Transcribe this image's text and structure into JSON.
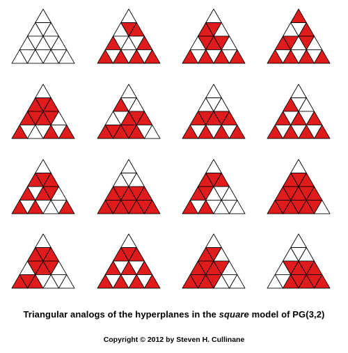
{
  "colors": {
    "fill": "#e01b1b",
    "edge": "#000000",
    "background": "#ffffff"
  },
  "diagram": {
    "rows": 4,
    "cols": 4,
    "triangle_levels": 4,
    "note": "each figure: 16 small triangles; levels 0-3 from apex; per level list of filled triangle indices (left to right, 0..2k)",
    "figures": [
      {
        "filled": [
          [],
          [],
          [],
          []
        ]
      },
      {
        "filled": [
          [],
          [
            1,
            2
          ],
          [
            0,
            4
          ],
          [
            0,
            2,
            4,
            6
          ]
        ]
      },
      {
        "filled": [
          [],
          [
            0,
            1
          ],
          [
            1,
            2,
            3
          ],
          [
            0,
            2,
            4,
            6
          ]
        ]
      },
      {
        "filled": [
          [
            0
          ],
          [
            2
          ],
          [
            0,
            1,
            3
          ],
          [
            0,
            2,
            4,
            6
          ]
        ]
      },
      {
        "filled": [
          [],
          [
            0,
            1,
            2
          ],
          [
            0,
            1,
            2,
            3
          ],
          [
            0,
            4,
            6
          ]
        ]
      },
      {
        "filled": [
          [],
          [
            0
          ],
          [
            2,
            3,
            4
          ],
          [
            0,
            1,
            2,
            3,
            4
          ]
        ]
      },
      {
        "filled": [
          [],
          [],
          [
            0,
            1,
            2,
            3,
            4
          ],
          [
            0,
            2,
            4,
            6
          ]
        ]
      },
      {
        "filled": [
          [],
          [
            0
          ],
          [
            0,
            2,
            4
          ],
          [
            0,
            2,
            4,
            6
          ]
        ]
      },
      {
        "filled": [
          [],
          [
            0,
            1,
            2
          ],
          [
            0,
            2,
            3
          ],
          [
            0,
            2,
            6
          ]
        ]
      },
      {
        "filled": [
          [],
          [],
          [
            0,
            1,
            2,
            3,
            4
          ],
          [
            0,
            1,
            2,
            3,
            4,
            5,
            6
          ]
        ]
      },
      {
        "filled": [
          [],
          [
            0,
            1,
            2
          ],
          [
            0,
            1
          ],
          [
            0,
            2
          ]
        ]
      },
      {
        "filled": [
          [],
          [
            0,
            1,
            2
          ],
          [
            0,
            1,
            2,
            3,
            4
          ],
          [
            0,
            1,
            2,
            3,
            4,
            5
          ]
        ]
      },
      {
        "filled": [
          [],
          [
            0,
            1,
            2
          ],
          [
            1,
            2,
            3
          ],
          [
            0,
            1,
            2
          ]
        ]
      },
      {
        "filled": [
          [],
          [
            0,
            1,
            2
          ],
          [
            0,
            2,
            4
          ],
          [
            0,
            2,
            4,
            6
          ]
        ]
      },
      {
        "filled": [
          [],
          [
            0,
            1
          ],
          [
            0,
            1,
            2,
            3
          ],
          [
            0,
            1,
            2,
            3
          ]
        ]
      },
      {
        "filled": [
          [],
          [],
          [
            1,
            2,
            3,
            4
          ],
          [
            2,
            3,
            4,
            5,
            6
          ]
        ]
      }
    ]
  },
  "caption": {
    "prefix": "Triangular analogs of the hyperplanes in the ",
    "emph": "square",
    "suffix": " model of PG(3,2)",
    "copyright": "Copyright © 2012 by Steven H. Cullinane"
  }
}
